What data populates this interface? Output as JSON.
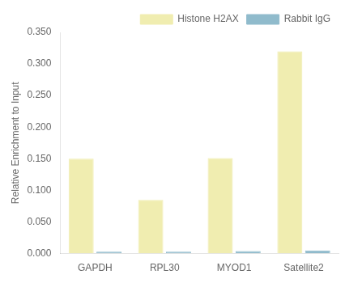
{
  "chart_data": {
    "type": "bar",
    "categories": [
      "GAPDH",
      "RPL30",
      "MYOD1",
      "Satellite2"
    ],
    "series": [
      {
        "name": "Histone H2AX",
        "color": "#F0EDB0",
        "values": [
          0.15,
          0.085,
          0.151,
          0.32
        ]
      },
      {
        "name": "Rabbit IgG",
        "color": "#90BBCC",
        "values": [
          0.003,
          0.003,
          0.004,
          0.005
        ]
      }
    ],
    "ylabel": "Relative Enrichment to Input",
    "ylim": [
      0,
      0.35
    ],
    "yticks": [
      {
        "value": 0,
        "label": "0.000"
      },
      {
        "value": 0.05,
        "label": "0.050"
      },
      {
        "value": 0.1,
        "label": "0.100"
      },
      {
        "value": 0.15,
        "label": "0.150"
      },
      {
        "value": 0.2,
        "label": "0.200"
      },
      {
        "value": 0.25,
        "label": "0.250"
      },
      {
        "value": 0.3,
        "label": "0.300"
      },
      {
        "value": 0.35,
        "label": "0.350"
      }
    ],
    "grid": false,
    "legend": "upper right"
  }
}
